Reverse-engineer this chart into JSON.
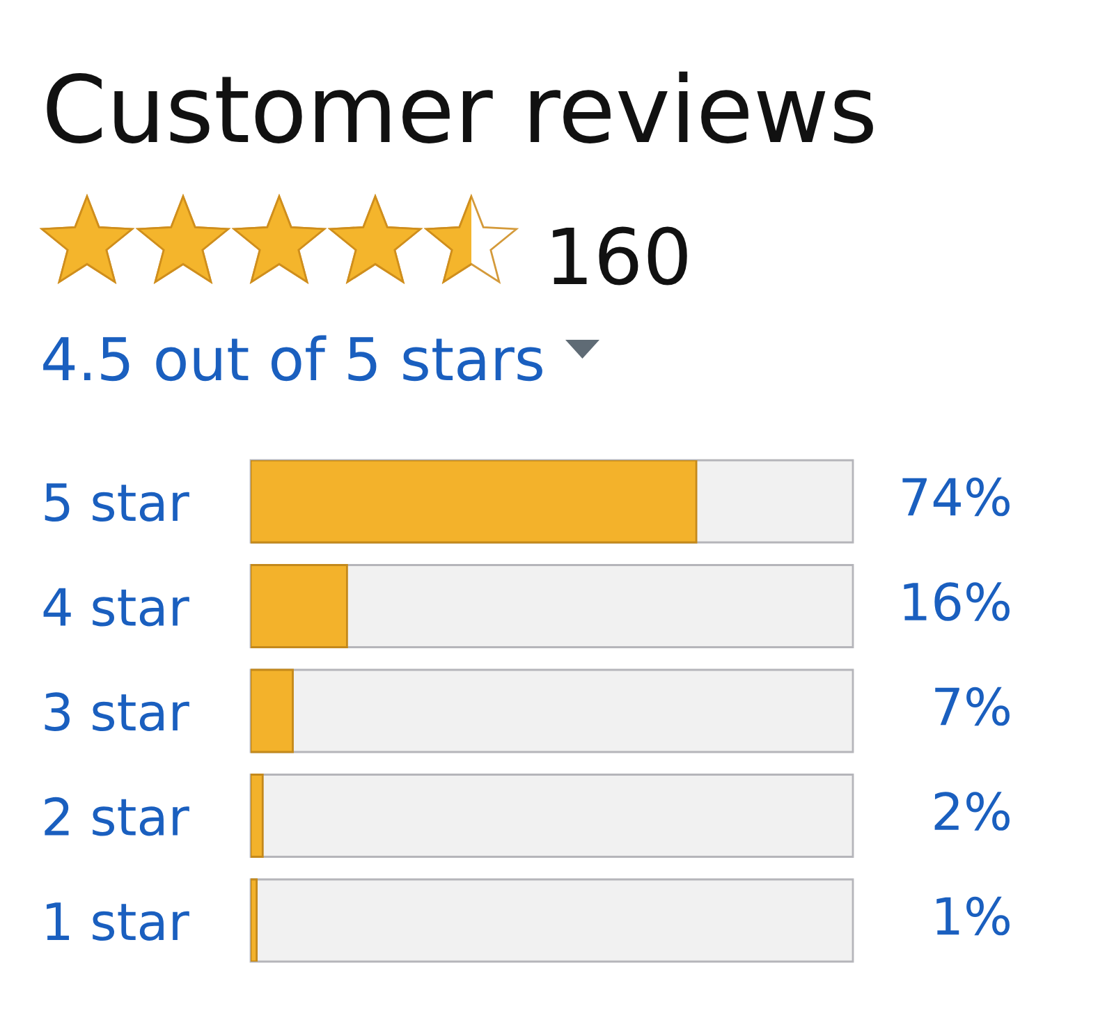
{
  "chart_data": {
    "type": "bar",
    "orientation": "horizontal",
    "title": "Customer reviews",
    "annotations": [
      "160",
      "4.5 out of 5 stars"
    ],
    "categories": [
      "5 star",
      "4 star",
      "3 star",
      "2 star",
      "1 star"
    ],
    "values": [
      74,
      16,
      7,
      2,
      1
    ],
    "value_labels": [
      "74%",
      "16%",
      "7%",
      "2%",
      "1%"
    ],
    "color": "#f3b22b",
    "xlim": [
      0,
      100
    ],
    "tick_labels": "y",
    "grid": false,
    "legend": false
  }
}
